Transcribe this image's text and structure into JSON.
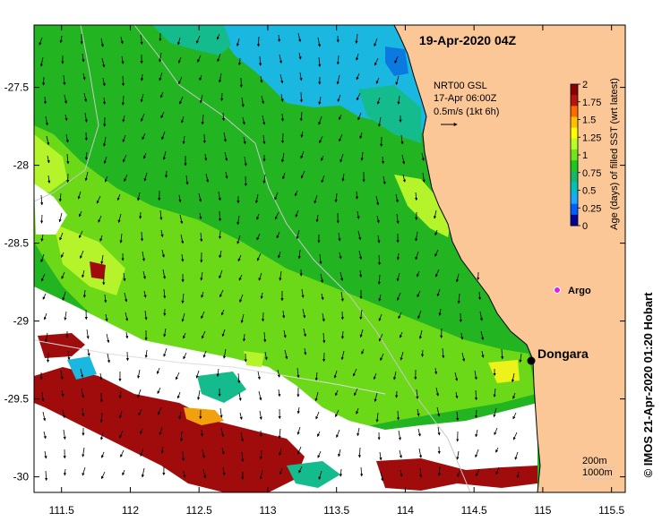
{
  "title": "19-Apr-2020 04Z",
  "credit": "© IMOS 21-Apr-2020 01:20 Hobart",
  "current_source": {
    "line1": "NRT00 GSL",
    "line2": "17-Apr 06:00Z",
    "line3": "0.5m/s (1kt 6h)"
  },
  "colorbar": {
    "label": "Age (days) of filled SST (wrt latest)",
    "ticks": [
      "2",
      "1.75",
      "1.5",
      "1.25",
      "1",
      "0.75",
      "0.5",
      "0.25",
      "0"
    ],
    "colors": [
      "#8b0000",
      "#b5140f",
      "#ff6a00",
      "#ffc000",
      "#ffff00",
      "#b8ff2a",
      "#72e51a",
      "#1ec81e",
      "#14b86c",
      "#00c0c0",
      "#18a8ff",
      "#0060ff",
      "#00009a"
    ]
  },
  "places": {
    "dongara": "Dongara",
    "argo": "Argo"
  },
  "isobath_legend": {
    "a": "200m",
    "b": "1000m"
  },
  "axes": {
    "x_ticks": [
      "111.5",
      "112",
      "112.5",
      "113",
      "113.5",
      "114",
      "114.5",
      "115",
      "115.5"
    ],
    "y_ticks": [
      "-27.5",
      "-28",
      "-28.5",
      "-29",
      "-29.5",
      "-30"
    ]
  },
  "colors": {
    "land": "#fbc797",
    "green": "#22b521",
    "lightgreen": "#6bd818",
    "yellowgreen": "#b5f42b",
    "brightgreen": "#2bd14a",
    "teal": "#14bb8d",
    "cyan": "#1ab7e0",
    "blue": "#0a7ae0",
    "darkred": "#a00c0c",
    "orange": "#f2a00e",
    "yellow": "#ecf21a"
  }
}
